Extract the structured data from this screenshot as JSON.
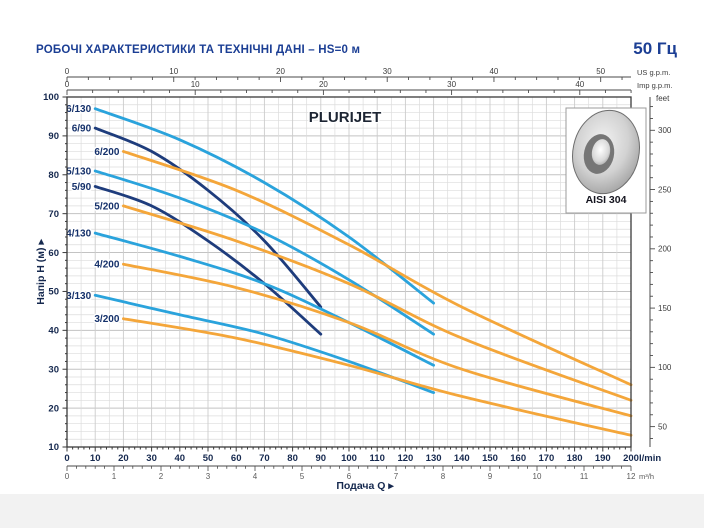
{
  "header": {
    "title": "РОБОЧІ ХАРАКТЕРИСТИКИ ТА ТЕХНІЧНІ ДАНІ  –  HS=0 м",
    "frequency": "50 Гц"
  },
  "chart_data": {
    "type": "line",
    "title": "PLURIJET",
    "xlabel": "Подача Q",
    "ylabel": "Напір H (м)",
    "x_axis": {
      "unit": "l/min",
      "min": 0,
      "max": 200,
      "tick_step": 10,
      "minor_step": 2,
      "secondary_bottom": {
        "unit": "m³/h",
        "min": 0,
        "max": 12,
        "tick_step": 1,
        "minor_step": 0.2,
        "lmin_per_unit": 16.6667
      },
      "secondary_top": [
        {
          "unit": "US g.p.m.",
          "min": 0,
          "max": 52,
          "tick_step": 10,
          "minor_step": 2,
          "lmin_per_unit": 3.785
        },
        {
          "unit": "Imp g.p.m.",
          "min": 0,
          "max": 44,
          "tick_step": 10,
          "minor_step": 2,
          "lmin_per_unit": 4.546
        }
      ]
    },
    "y_axis": {
      "unit": "м",
      "min": 10,
      "max": 100,
      "tick_step": 10,
      "minor_step": 2,
      "secondary_right": {
        "unit": "feet",
        "label_step": 50,
        "labels": [
          50,
          100,
          150,
          200,
          250,
          300
        ],
        "minor_step": 10,
        "min": 40,
        "max": 320,
        "m_per_unit": 0.3048
      }
    },
    "grid": {
      "minor_x_lmin": 5,
      "major_x_lmin": 10,
      "minor_y_m": 2,
      "major_y_m": 10
    },
    "colors": {
      "s130": "#2aa3dc",
      "s90": "#1e3c7c",
      "s200": "#f4a63a"
    },
    "series": [
      {
        "name": "6/130",
        "group": "s130",
        "points": [
          [
            10,
            97
          ],
          [
            40,
            89
          ],
          [
            70,
            78
          ],
          [
            100,
            64
          ],
          [
            130,
            47
          ]
        ]
      },
      {
        "name": "6/90",
        "group": "s90",
        "points": [
          [
            10,
            92
          ],
          [
            30,
            86
          ],
          [
            50,
            76
          ],
          [
            70,
            63
          ],
          [
            90,
            46
          ]
        ]
      },
      {
        "name": "6/200",
        "group": "s200",
        "points": [
          [
            20,
            86
          ],
          [
            60,
            76
          ],
          [
            100,
            62
          ],
          [
            140,
            46
          ],
          [
            200,
            26
          ]
        ]
      },
      {
        "name": "5/130",
        "group": "s130",
        "points": [
          [
            10,
            81
          ],
          [
            40,
            74
          ],
          [
            70,
            65
          ],
          [
            100,
            53
          ],
          [
            130,
            39
          ]
        ]
      },
      {
        "name": "5/90",
        "group": "s90",
        "points": [
          [
            10,
            77
          ],
          [
            30,
            72
          ],
          [
            50,
            63
          ],
          [
            70,
            52
          ],
          [
            90,
            39
          ]
        ]
      },
      {
        "name": "5/200",
        "group": "s200",
        "points": [
          [
            20,
            72
          ],
          [
            60,
            63
          ],
          [
            100,
            52
          ],
          [
            140,
            38
          ],
          [
            200,
            22
          ]
        ]
      },
      {
        "name": "4/130",
        "group": "s130",
        "points": [
          [
            10,
            65
          ],
          [
            40,
            59
          ],
          [
            70,
            52
          ],
          [
            100,
            42
          ],
          [
            130,
            31
          ]
        ]
      },
      {
        "name": "4/200",
        "group": "s200",
        "points": [
          [
            20,
            57
          ],
          [
            60,
            51
          ],
          [
            100,
            42
          ],
          [
            140,
            30
          ],
          [
            200,
            18
          ]
        ]
      },
      {
        "name": "3/130",
        "group": "s130",
        "points": [
          [
            10,
            49
          ],
          [
            40,
            44
          ],
          [
            70,
            39
          ],
          [
            100,
            32
          ],
          [
            130,
            24
          ]
        ]
      },
      {
        "name": "3/200",
        "group": "s200",
        "points": [
          [
            20,
            43
          ],
          [
            60,
            38
          ],
          [
            100,
            31
          ],
          [
            140,
            23
          ],
          [
            200,
            13
          ]
        ]
      }
    ],
    "inset": {
      "label": "AISI 304"
    }
  }
}
